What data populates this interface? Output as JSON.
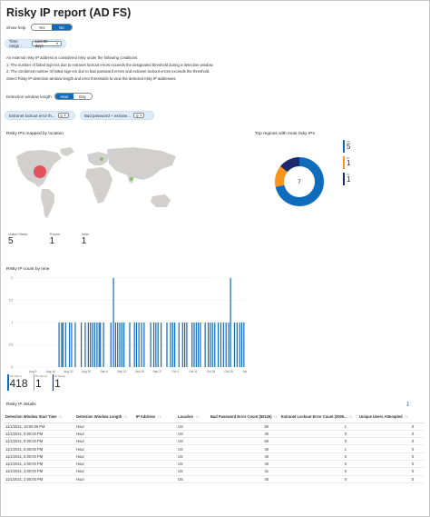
{
  "page": {
    "title": "Risky IP report (AD FS)"
  },
  "show_help": {
    "label": "Show help",
    "options": [
      "Yes",
      "No"
    ],
    "selected": "No"
  },
  "time_range": {
    "label": "Time range :",
    "value": "Last 90 days"
  },
  "help_text": {
    "intro": "An external risky IP address is considered risky under the following conditions:",
    "conditions": [
      "1. The number of failed sign-ins due to extranet lockout errors exceeds the designated threshold during a detection window.",
      "2. The combined number of failed sign-ins due to bad password errors and extranet lockout errors exceeds the threshold."
    ],
    "instruction": "Select Risky IP detection window length and error thresholds to view the detected risky IP addresses."
  },
  "detection_window": {
    "label": "Detection window length",
    "options": [
      "Hour",
      "Day"
    ],
    "selected": "Hour"
  },
  "filters": [
    {
      "label": "Extranet lockout error th...",
      "value": "0"
    },
    {
      "label": "Bad password + extrane...",
      "value": "0"
    }
  ],
  "map": {
    "title": "Risky IPs mapped by location",
    "kpis": [
      {
        "label": "United States",
        "value": "5"
      },
      {
        "label": "Poland",
        "value": "1"
      },
      {
        "label": "India",
        "value": "1"
      }
    ]
  },
  "regions": {
    "title": "Top regions with most risky IPs",
    "center_value": "7",
    "legend": [
      {
        "label": "US",
        "value": "5",
        "color": "#0f6cbd"
      },
      {
        "label": "PL",
        "value": "1",
        "color": "#f7941d"
      },
      {
        "label": "IN",
        "value": "1",
        "color": "#1b2a6b"
      }
    ]
  },
  "ip_count_chart": {
    "title": "Risky IP count by time",
    "kpis": [
      {
        "label": "US (Sum)",
        "value": "418",
        "color": "#0f6cbd"
      },
      {
        "label": "PL (Sum)",
        "value": "1",
        "color": "#f7941d"
      },
      {
        "label": "IN (Sum)",
        "value": "1",
        "color": "#1b2a6b"
      }
    ]
  },
  "chart_data": [
    {
      "type": "pie",
      "title": "Top regions with most risky IPs",
      "categories": [
        "US",
        "PL",
        "IN"
      ],
      "values": [
        5,
        1,
        1
      ],
      "colors": [
        "#0f6cbd",
        "#f7941d",
        "#1b2a6b"
      ],
      "center_label": "7"
    },
    {
      "type": "bar",
      "title": "Risky IP count by time",
      "y_ticks": [
        "2",
        "1.5",
        "1",
        "0.5",
        "0"
      ],
      "ylim": [
        0,
        2
      ],
      "x_ticks": [
        "Aug 9",
        "Aug 16",
        "Aug 23",
        "Aug 30",
        "Sep 6",
        "Sep 13",
        "Sep 20",
        "Sep 27",
        "Oct 4",
        "Oct 11",
        "Oct 18",
        "Oct 25",
        "Nov 1"
      ],
      "x_index_range": [
        0,
        88
      ],
      "bar_color": "#0f6cbd",
      "bars": [
        {
          "x": 17.0,
          "y": 1
        },
        {
          "x": 18.0,
          "y": 1
        },
        {
          "x": 18.5,
          "y": 1
        },
        {
          "x": 19.5,
          "y": 1
        },
        {
          "x": 21.0,
          "y": 1
        },
        {
          "x": 21.8,
          "y": 1
        },
        {
          "x": 23.2,
          "y": 1
        },
        {
          "x": 25.5,
          "y": 1
        },
        {
          "x": 27.0,
          "y": 1
        },
        {
          "x": 28.2,
          "y": 1
        },
        {
          "x": 29.0,
          "y": 1
        },
        {
          "x": 29.8,
          "y": 1
        },
        {
          "x": 30.6,
          "y": 1
        },
        {
          "x": 31.5,
          "y": 1
        },
        {
          "x": 32.3,
          "y": 1
        },
        {
          "x": 32.8,
          "y": 1
        },
        {
          "x": 34.0,
          "y": 1
        },
        {
          "x": 36.8,
          "y": 1
        },
        {
          "x": 37.8,
          "y": 2
        },
        {
          "x": 38.6,
          "y": 1
        },
        {
          "x": 39.4,
          "y": 1
        },
        {
          "x": 40.2,
          "y": 1
        },
        {
          "x": 41.0,
          "y": 1
        },
        {
          "x": 41.8,
          "y": 1
        },
        {
          "x": 44.0,
          "y": 1
        },
        {
          "x": 45.8,
          "y": 1
        },
        {
          "x": 46.6,
          "y": 1
        },
        {
          "x": 47.5,
          "y": 1
        },
        {
          "x": 48.5,
          "y": 1
        },
        {
          "x": 49.5,
          "y": 1
        },
        {
          "x": 52.0,
          "y": 1
        },
        {
          "x": 53.2,
          "y": 1
        },
        {
          "x": 54.0,
          "y": 1
        },
        {
          "x": 54.8,
          "y": 1
        },
        {
          "x": 56.0,
          "y": 1
        },
        {
          "x": 58.2,
          "y": 1
        },
        {
          "x": 59.6,
          "y": 1
        },
        {
          "x": 60.4,
          "y": 1
        },
        {
          "x": 61.2,
          "y": 1
        },
        {
          "x": 62.8,
          "y": 1
        },
        {
          "x": 64.2,
          "y": 1
        },
        {
          "x": 65.0,
          "y": 1
        },
        {
          "x": 65.8,
          "y": 1
        },
        {
          "x": 67.8,
          "y": 1
        },
        {
          "x": 68.6,
          "y": 1
        },
        {
          "x": 69.4,
          "y": 1
        },
        {
          "x": 70.2,
          "y": 1
        },
        {
          "x": 71.0,
          "y": 1
        },
        {
          "x": 72.8,
          "y": 1
        },
        {
          "x": 74.0,
          "y": 1
        },
        {
          "x": 74.8,
          "y": 1
        },
        {
          "x": 75.6,
          "y": 1
        },
        {
          "x": 76.5,
          "y": 1
        },
        {
          "x": 77.8,
          "y": 1
        },
        {
          "x": 78.8,
          "y": 1
        },
        {
          "x": 79.8,
          "y": 1
        },
        {
          "x": 80.8,
          "y": 1
        },
        {
          "x": 81.8,
          "y": 1
        },
        {
          "x": 82.5,
          "y": 2
        },
        {
          "x": 84.0,
          "y": 1
        },
        {
          "x": 85.0,
          "y": 1
        },
        {
          "x": 86.0,
          "y": 1
        },
        {
          "x": 86.8,
          "y": 1
        },
        {
          "x": 87.6,
          "y": 1
        }
      ]
    }
  ],
  "details": {
    "title": "Risky IP details",
    "columns": [
      "Detection Window Start Time",
      "Detection Window Length",
      "IP Address",
      "Location",
      "Bad Password Error Count (50126)",
      "Extranet Lockout Error Count (3000...",
      "Unique Users Attempted"
    ],
    "rows": [
      [
        "11/1/2021, 10:00:00 PM",
        "Hour",
        "",
        "US",
        "50",
        "1",
        "0"
      ],
      [
        "11/1/2021, 9:00:00 PM",
        "Hour",
        "",
        "US",
        "40",
        "0",
        "0"
      ],
      [
        "11/1/2021, 8:00:00 PM",
        "Hour",
        "",
        "US",
        "60",
        "0",
        "0"
      ],
      [
        "11/1/2021, 6:00:00 PM",
        "Hour",
        "",
        "US",
        "40",
        "1",
        "0"
      ],
      [
        "11/1/2021, 5:00:00 PM",
        "Hour",
        "",
        "US",
        "40",
        "0",
        "0"
      ],
      [
        "11/1/2021, 4:00:00 PM",
        "Hour",
        "",
        "US",
        "40",
        "0",
        "0"
      ],
      [
        "11/1/2021, 3:00:00 PM",
        "Hour",
        "",
        "US",
        "41",
        "0",
        "0"
      ],
      [
        "11/1/2021, 2:00:00 PM",
        "Hour",
        "",
        "US",
        "40",
        "0",
        "0"
      ]
    ]
  }
}
